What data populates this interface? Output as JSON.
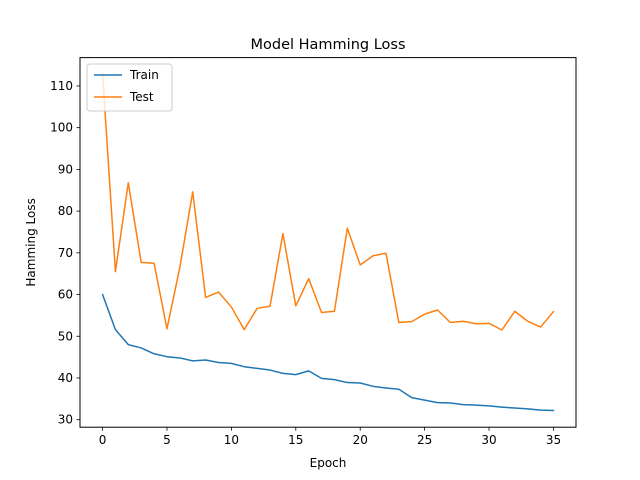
{
  "chart_data": {
    "type": "line",
    "title": "Model Hamming Loss",
    "xlabel": "Epoch",
    "ylabel": "Hamming Loss",
    "xlim": [
      -1.75,
      36.75
    ],
    "ylim": [
      28.2,
      116.8
    ],
    "xticks": [
      0,
      5,
      10,
      15,
      20,
      25,
      30,
      35
    ],
    "yticks": [
      30,
      40,
      50,
      60,
      70,
      80,
      90,
      100,
      110
    ],
    "legend_position": "upper-left",
    "x": [
      0,
      1,
      2,
      3,
      4,
      5,
      6,
      7,
      8,
      9,
      10,
      11,
      12,
      13,
      14,
      15,
      16,
      17,
      18,
      19,
      20,
      21,
      22,
      23,
      24,
      25,
      26,
      27,
      28,
      29,
      30,
      31,
      32,
      33,
      34,
      35
    ],
    "series": [
      {
        "name": "Train",
        "color": "#1f77b4",
        "values": [
          60.0,
          51.6,
          48.0,
          47.2,
          45.8,
          45.1,
          44.8,
          44.1,
          44.3,
          43.7,
          43.5,
          42.7,
          42.3,
          41.9,
          41.1,
          40.8,
          41.7,
          39.9,
          39.6,
          38.9,
          38.8,
          38.0,
          37.6,
          37.3,
          35.3,
          34.7,
          34.1,
          34.0,
          33.6,
          33.5,
          33.3,
          33.0,
          32.8,
          32.6,
          32.3,
          32.2
        ]
      },
      {
        "name": "Test",
        "color": "#ff7f0e",
        "values": [
          113.0,
          65.5,
          86.8,
          67.7,
          67.5,
          51.8,
          66.5,
          84.6,
          59.3,
          60.6,
          57.0,
          51.6,
          56.7,
          57.2,
          74.6,
          57.3,
          63.8,
          55.7,
          56.0,
          75.9,
          67.1,
          69.3,
          69.9,
          53.3,
          53.5,
          55.3,
          56.3,
          53.3,
          53.6,
          53.0,
          53.1,
          51.5,
          56.0,
          53.6,
          52.2,
          55.9
        ]
      }
    ]
  }
}
